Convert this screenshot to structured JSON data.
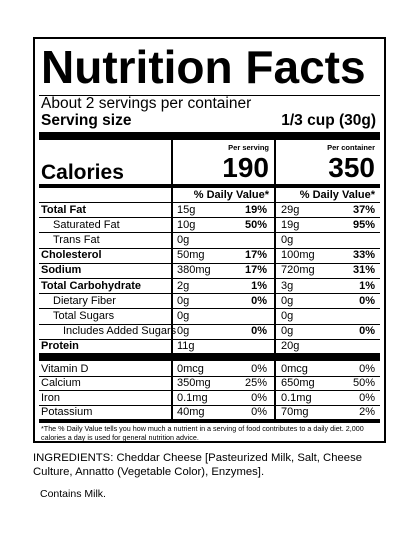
{
  "title": "Nutrition Facts",
  "servings_per_container": "About 2 servings per container",
  "serving_size_label": "Serving size",
  "serving_size_value": "1/3 cup (30g)",
  "col_headers": {
    "per_serving": "Per serving",
    "per_container": "Per container"
  },
  "calories_label": "Calories",
  "calories": {
    "per_serving": "190",
    "per_container": "350"
  },
  "dv_header": "% Daily Value*",
  "nutrients": [
    {
      "name": "Total Fat",
      "bold": true,
      "indent": 0,
      "s_amt": "15g",
      "s_dv": "19%",
      "c_amt": "29g",
      "c_dv": "37%"
    },
    {
      "name": "Saturated Fat",
      "bold": false,
      "indent": 1,
      "s_amt": "10g",
      "s_dv": "50%",
      "c_amt": "19g",
      "c_dv": "95%"
    },
    {
      "name": "Trans Fat",
      "bold": false,
      "indent": 1,
      "s_amt": "0g",
      "s_dv": "",
      "c_amt": "0g",
      "c_dv": ""
    },
    {
      "name": "Cholesterol",
      "bold": true,
      "indent": 0,
      "s_amt": "50mg",
      "s_dv": "17%",
      "c_amt": "100mg",
      "c_dv": "33%"
    },
    {
      "name": "Sodium",
      "bold": true,
      "indent": 0,
      "s_amt": "380mg",
      "s_dv": "17%",
      "c_amt": "720mg",
      "c_dv": "31%"
    },
    {
      "name": "Total Carbohydrate",
      "bold": true,
      "indent": 0,
      "s_amt": "2g",
      "s_dv": "1%",
      "c_amt": "3g",
      "c_dv": "1%"
    },
    {
      "name": "Dietary Fiber",
      "bold": false,
      "indent": 1,
      "s_amt": "0g",
      "s_dv": "0%",
      "c_amt": "0g",
      "c_dv": "0%"
    },
    {
      "name": "Total Sugars",
      "bold": false,
      "indent": 1,
      "s_amt": "0g",
      "s_dv": "",
      "c_amt": "0g",
      "c_dv": ""
    },
    {
      "name": "Includes Added Sugars",
      "bold": false,
      "indent": 2,
      "s_amt": "0g",
      "s_dv": "0%",
      "c_amt": "0g",
      "c_dv": "0%"
    },
    {
      "name": "Protein",
      "bold": true,
      "indent": 0,
      "s_amt": "11g",
      "s_dv": "",
      "c_amt": "20g",
      "c_dv": ""
    }
  ],
  "vitamins": [
    {
      "name": "Vitamin D",
      "s_amt": "0mcg",
      "s_dv": "0%",
      "c_amt": "0mcg",
      "c_dv": "0%"
    },
    {
      "name": "Calcium",
      "s_amt": "350mg",
      "s_dv": "25%",
      "c_amt": "650mg",
      "c_dv": "50%"
    },
    {
      "name": "Iron",
      "s_amt": "0.1mg",
      "s_dv": "0%",
      "c_amt": "0.1mg",
      "c_dv": "0%"
    },
    {
      "name": "Potassium",
      "s_amt": "40mg",
      "s_dv": "0%",
      "c_amt": "70mg",
      "c_dv": "2%"
    }
  ],
  "footnote": "*The % Daily Value tells you how much a nutrient in a serving of food contributes to a daily diet. 2,000 calories a day is used for general nutrition advice.",
  "ingredients": "INGREDIENTS: Cheddar Cheese [Pasteurized Milk, Salt, Cheese Culture, Annatto (Vegetable Color), Enzymes].",
  "contains": "Contains Milk."
}
